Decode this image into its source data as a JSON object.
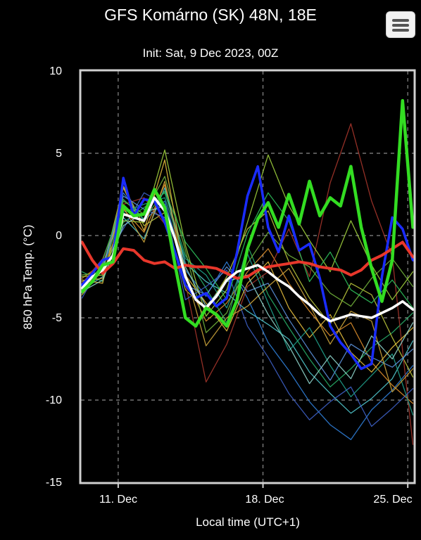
{
  "header": {
    "title": "GFS Komárno (SK) 48N, 18E",
    "subtitle": "Init: Sat, 9 Dec 2023, 00Z",
    "menu_icon": "hamburger-menu-icon"
  },
  "colors": {
    "background": "#000000",
    "plot_border": "#d0d0d0",
    "grid": "#8a8a8a",
    "control_run": "#33dd22",
    "operational_run": "#1a2cff",
    "ensemble_mean": "#ffffff",
    "climate_mean": "#e8372b"
  },
  "chart_data": {
    "type": "line",
    "title": "GFS Komárno (SK) 48N, 18E",
    "subtitle": "Init: Sat, 9 Dec 2023, 00Z",
    "xlabel": "Local time (UTC+1)",
    "ylabel": "850 hPa Temp. (°C)",
    "ylim": [
      -15,
      10
    ],
    "xlim": [
      9.2,
      25.3
    ],
    "yticks": [
      10,
      5,
      0,
      -5,
      -10,
      -15
    ],
    "xticks": [
      {
        "x": 11,
        "label": "11. Dec"
      },
      {
        "x": 18,
        "label": "18. Dec"
      },
      {
        "x": 25,
        "label": "25. Dec"
      }
    ],
    "grid": true,
    "legend": "none",
    "series": [
      {
        "role": "climate",
        "color": "#e8372b",
        "x": [
          9.25,
          9.75,
          10.25,
          10.75,
          11.25,
          11.75,
          12.25,
          12.75,
          13.25,
          13.75,
          14.25,
          14.75,
          15.25,
          15.75,
          16.25,
          16.75,
          17.25,
          17.75,
          18.25,
          18.75,
          19.25,
          19.75,
          20.25,
          20.75,
          21.25,
          21.75,
          22.25,
          22.75,
          23.25,
          23.75,
          24.25,
          24.75,
          25.25
        ],
        "y": [
          -0.4,
          -1.5,
          -2.3,
          -1.7,
          -0.8,
          -0.9,
          -1.5,
          -1.7,
          -1.6,
          -2.0,
          -1.8,
          -1.9,
          -1.9,
          -2.0,
          -2.3,
          -2.6,
          -2.5,
          -2.1,
          -1.9,
          -1.8,
          -1.7,
          -1.6,
          -1.7,
          -1.9,
          -2.0,
          -2.1,
          -2.4,
          -2.1,
          -1.5,
          -1.2,
          -0.8,
          -0.4,
          -1.3
        ]
      },
      {
        "role": "ensemble-mean",
        "color": "#ffffff",
        "x": [
          9.25,
          9.75,
          10.25,
          10.75,
          11.25,
          11.75,
          12.25,
          12.75,
          13.25,
          13.75,
          14.25,
          14.75,
          15.25,
          15.75,
          16.25,
          16.75,
          17.25,
          17.75,
          18.25,
          18.75,
          19.25,
          19.75,
          20.25,
          20.75,
          21.25,
          21.75,
          22.25,
          22.75,
          23.25,
          23.75,
          24.25,
          24.75,
          25.25
        ],
        "y": [
          -3.2,
          -2.5,
          -2.1,
          -1.2,
          1.3,
          1.1,
          0.9,
          2.3,
          1.5,
          -0.2,
          -2.5,
          -3.9,
          -4.4,
          -3.7,
          -2.7,
          -2.2,
          -2.0,
          -1.8,
          -2.2,
          -2.7,
          -3.1,
          -3.7,
          -4.2,
          -4.8,
          -5.2,
          -5.0,
          -4.8,
          -4.9,
          -5.0,
          -4.7,
          -4.4,
          -4.0,
          -4.5
        ]
      },
      {
        "role": "control",
        "color": "#33dd22",
        "x": [
          9.25,
          9.75,
          10.25,
          10.75,
          11.25,
          11.75,
          12.25,
          12.75,
          13.25,
          13.75,
          14.25,
          14.75,
          15.25,
          15.75,
          16.25,
          16.75,
          17.25,
          17.75,
          18.25,
          18.75,
          19.25,
          19.75,
          20.25,
          20.75,
          21.25,
          21.75,
          22.25,
          22.75,
          23.25,
          23.75,
          24.25,
          24.75,
          25.25
        ],
        "y": [
          -3.4,
          -2.8,
          -1.8,
          -1.6,
          1.8,
          1.2,
          1.3,
          2.8,
          1.7,
          -1.8,
          -5.0,
          -5.5,
          -4.4,
          -4.8,
          -5.5,
          -3.9,
          -0.8,
          1.0,
          2.0,
          0.5,
          2.5,
          0.7,
          3.3,
          1.2,
          2.3,
          1.8,
          4.2,
          0.5,
          -2.0,
          -4.0,
          -1.5,
          8.2,
          0.5
        ]
      },
      {
        "role": "operational",
        "color": "#1a2cff",
        "x": [
          9.25,
          9.75,
          10.25,
          10.75,
          11.25,
          11.75,
          12.25,
          12.75,
          13.25,
          13.75,
          14.25,
          14.75,
          15.25,
          15.75,
          16.25,
          16.75,
          17.25,
          17.75,
          18.25,
          18.75,
          19.25,
          19.75,
          20.25,
          20.75,
          21.25,
          21.75,
          22.25,
          22.75,
          23.25,
          23.75,
          24.25,
          24.75,
          25.25
        ],
        "y": [
          -3.0,
          -2.3,
          -1.5,
          -1.3,
          3.5,
          1.2,
          2.2,
          2.1,
          0.8,
          -1.0,
          -3.0,
          -3.8,
          -3.5,
          -4.3,
          -3.8,
          -1.0,
          2.4,
          4.2,
          0.5,
          -1.0,
          1.2,
          -0.9,
          -0.5,
          -2.6,
          -5.5,
          -6.5,
          -7.2,
          -8.1,
          -7.8,
          -2.5,
          1.1,
          0.4,
          -1.5
        ]
      },
      {
        "role": "member",
        "color": "#2f7dd6",
        "x": [
          9.25,
          10.25,
          11.25,
          12.25,
          13.25,
          14.25,
          15.25,
          16.25,
          17.25,
          18.25,
          19.25,
          20.25,
          21.25,
          22.25,
          23.25,
          24.25,
          25.25
        ],
        "y": [
          -3.1,
          -1.9,
          2.6,
          0.9,
          2.1,
          -2.1,
          -3.7,
          -1.6,
          -3.8,
          -6.5,
          -8.2,
          -10.1,
          -11.5,
          -12.4,
          -10.6,
          -9.4,
          -7.9
        ]
      },
      {
        "role": "member",
        "color": "#d98c2b",
        "x": [
          9.25,
          10.25,
          11.25,
          12.25,
          13.25,
          14.25,
          15.25,
          16.25,
          17.25,
          18.25,
          19.25,
          20.25,
          21.25,
          22.25,
          23.25,
          24.25,
          25.25
        ],
        "y": [
          -2.6,
          -1.7,
          1.6,
          0.2,
          3.1,
          -2.6,
          -5.2,
          -4.1,
          -2.2,
          -0.8,
          -2.9,
          -4.6,
          -6.1,
          -5.3,
          -7.7,
          -9.1,
          -10.2
        ]
      },
      {
        "role": "member",
        "color": "#27a866",
        "x": [
          9.25,
          10.25,
          11.25,
          12.25,
          13.25,
          14.25,
          15.25,
          16.25,
          17.25,
          18.25,
          19.25,
          20.25,
          21.25,
          22.25,
          23.25,
          24.25,
          25.25
        ],
        "y": [
          -2.2,
          -2.8,
          0.8,
          1.7,
          2.6,
          -1.2,
          -3.2,
          -5.3,
          -0.6,
          -3.6,
          -5.6,
          -7.5,
          -9.2,
          -8.1,
          -6.8,
          -5.9,
          -4.7
        ]
      },
      {
        "role": "member",
        "color": "#b7c23a",
        "x": [
          9.25,
          10.25,
          11.25,
          12.25,
          13.25,
          14.25,
          15.25,
          16.25,
          17.25,
          18.25,
          19.25,
          20.25,
          21.25,
          22.25,
          23.25,
          24.25,
          25.25
        ],
        "y": [
          -3.6,
          -2.1,
          3.0,
          0.6,
          1.4,
          -3.3,
          -4.5,
          -2.5,
          0.4,
          1.5,
          -1.6,
          -3.8,
          -5.4,
          -2.9,
          -3.6,
          -6.2,
          -8.6
        ]
      },
      {
        "role": "member",
        "color": "#a3342a",
        "x": [
          9.25,
          10.25,
          11.25,
          12.25,
          13.25,
          14.25,
          15.25,
          16.25,
          17.25,
          18.25,
          19.25,
          20.25,
          21.25,
          22.25,
          23.25,
          24.25,
          25.25
        ],
        "y": [
          -2.9,
          -1.4,
          1.9,
          2.3,
          0.7,
          -2.9,
          -8.9,
          -6.6,
          -3.1,
          -2.2,
          0.4,
          -2.5,
          3.2,
          6.8,
          2.1,
          -1.3,
          -12.7
        ]
      },
      {
        "role": "member",
        "color": "#4fc3c9",
        "x": [
          9.25,
          10.25,
          11.25,
          12.25,
          13.25,
          14.25,
          15.25,
          16.25,
          17.25,
          18.25,
          19.25,
          20.25,
          21.25,
          22.25,
          23.25,
          24.25,
          25.25
        ],
        "y": [
          -3.3,
          -2.5,
          1.1,
          -0.2,
          2.9,
          -1.7,
          -2.8,
          -3.5,
          -4.6,
          -5.4,
          -6.3,
          -8.3,
          -9.6,
          -10.8,
          -9.9,
          -8.7,
          -6.4
        ]
      },
      {
        "role": "member",
        "color": "#6fae3a",
        "x": [
          9.25,
          10.25,
          11.25,
          12.25,
          13.25,
          14.25,
          15.25,
          16.25,
          17.25,
          18.25,
          19.25,
          20.25,
          21.25,
          22.25,
          23.25,
          24.25,
          25.25
        ],
        "y": [
          -2.4,
          -2.2,
          2.1,
          1.3,
          3.6,
          -0.9,
          -5.9,
          -4.7,
          -1.7,
          0.2,
          -1.2,
          -1.9,
          -3.5,
          -4.3,
          -2.6,
          -1.4,
          -3.1
        ]
      },
      {
        "role": "member",
        "color": "#3d5fc4",
        "x": [
          9.25,
          10.25,
          11.25,
          12.25,
          13.25,
          14.25,
          15.25,
          16.25,
          17.25,
          18.25,
          19.25,
          20.25,
          21.25,
          22.25,
          23.25,
          24.25,
          25.25
        ],
        "y": [
          -3.8,
          -1.6,
          0.4,
          2.6,
          1.9,
          -3.9,
          -3.1,
          -2.1,
          -5.5,
          -7.4,
          -9.6,
          -11.2,
          -10.1,
          -9.2,
          -11.6,
          -10.5,
          -9.3
        ]
      },
      {
        "role": "member",
        "color": "#e0b93c",
        "x": [
          9.25,
          10.25,
          11.25,
          12.25,
          13.25,
          14.25,
          15.25,
          16.25,
          17.25,
          18.25,
          19.25,
          20.25,
          21.25,
          22.25,
          23.25,
          24.25,
          25.25
        ],
        "y": [
          -2.7,
          -2.9,
          2.9,
          0.3,
          4.6,
          -2.4,
          -4.1,
          -5.8,
          -2.9,
          -1.6,
          -4.4,
          -6.2,
          -4.8,
          -7.1,
          -8.3,
          -6.8,
          -5.6
        ]
      },
      {
        "role": "member",
        "color": "#1f9e8a",
        "x": [
          9.25,
          10.25,
          11.25,
          12.25,
          13.25,
          14.25,
          15.25,
          16.25,
          17.25,
          18.25,
          19.25,
          20.25,
          21.25,
          22.25,
          23.25,
          24.25,
          25.25
        ],
        "y": [
          -3.2,
          -1.8,
          1.4,
          1.9,
          2.3,
          -1.4,
          -2.4,
          -4.4,
          -1.1,
          -4.1,
          -7.0,
          -5.6,
          -7.9,
          -9.8,
          -8.5,
          -7.2,
          -10.9
        ]
      },
      {
        "role": "member",
        "color": "#9ccc3c",
        "x": [
          9.25,
          10.25,
          11.25,
          12.25,
          13.25,
          14.25,
          15.25,
          16.25,
          17.25,
          18.25,
          19.25,
          20.25,
          21.25,
          22.25,
          23.25,
          24.25,
          25.25
        ],
        "y": [
          -2.5,
          -2.4,
          0.9,
          0.8,
          5.2,
          -0.6,
          -4.9,
          -3.3,
          0.8,
          4.9,
          1.8,
          -0.3,
          -2.2,
          0.9,
          -1.8,
          -3.9,
          -2.2
        ]
      },
      {
        "role": "member",
        "color": "#5a8fd8",
        "x": [
          9.25,
          10.25,
          11.25,
          12.25,
          13.25,
          14.25,
          15.25,
          16.25,
          17.25,
          18.25,
          19.25,
          20.25,
          21.25,
          22.25,
          23.25,
          24.25,
          25.25
        ],
        "y": [
          -3.5,
          -2.0,
          2.4,
          1.6,
          1.1,
          -3.0,
          -3.6,
          -1.9,
          -3.4,
          -2.9,
          -5.1,
          -7.0,
          -8.8,
          -6.6,
          -7.4,
          -8.0,
          -6.9
        ]
      },
      {
        "role": "member",
        "color": "#c9a23a",
        "x": [
          9.25,
          10.25,
          11.25,
          12.25,
          13.25,
          14.25,
          15.25,
          16.25,
          17.25,
          18.25,
          19.25,
          20.25,
          21.25,
          22.25,
          23.25,
          24.25,
          25.25
        ],
        "y": [
          -2.8,
          -2.6,
          1.7,
          -0.4,
          3.3,
          -2.2,
          -6.7,
          -5.0,
          -4.3,
          -3.1,
          -2.0,
          -4.2,
          -6.6,
          -4.6,
          -5.2,
          -9.5,
          -8.1
        ]
      },
      {
        "role": "member",
        "color": "#2ebd5a",
        "x": [
          9.25,
          10.25,
          11.25,
          12.25,
          13.25,
          14.25,
          15.25,
          16.25,
          17.25,
          18.25,
          19.25,
          20.25,
          21.25,
          22.25,
          23.25,
          24.25,
          25.25
        ],
        "y": [
          -3.0,
          -1.5,
          2.2,
          1.0,
          2.7,
          -0.4,
          -2.0,
          -3.9,
          0.1,
          2.6,
          0.9,
          -2.8,
          -1.0,
          -3.3,
          -4.1,
          -2.7,
          -4.4
        ]
      },
      {
        "role": "member",
        "color": "#8cd0c8",
        "x": [
          9.25,
          10.25,
          11.25,
          12.25,
          13.25,
          14.25,
          15.25,
          16.25,
          17.25,
          18.25,
          19.25,
          20.25,
          21.25,
          22.25,
          23.25,
          24.25,
          25.25
        ],
        "y": [
          -3.4,
          -2.7,
          0.6,
          1.4,
          1.8,
          -1.9,
          -4.3,
          -2.8,
          -2.4,
          -4.8,
          -6.7,
          -9.0,
          -7.3,
          -8.7,
          -6.1,
          -7.5,
          -5.3
        ]
      }
    ]
  },
  "axes": {
    "ylabel": "850 hPa Temp. (°C)",
    "xlabel": "Local time (UTC+1)",
    "yticks": [
      "10",
      "5",
      "0",
      "-5",
      "-10",
      "-15"
    ],
    "xticks": [
      "11. Dec",
      "18. Dec",
      "25. Dec"
    ]
  }
}
